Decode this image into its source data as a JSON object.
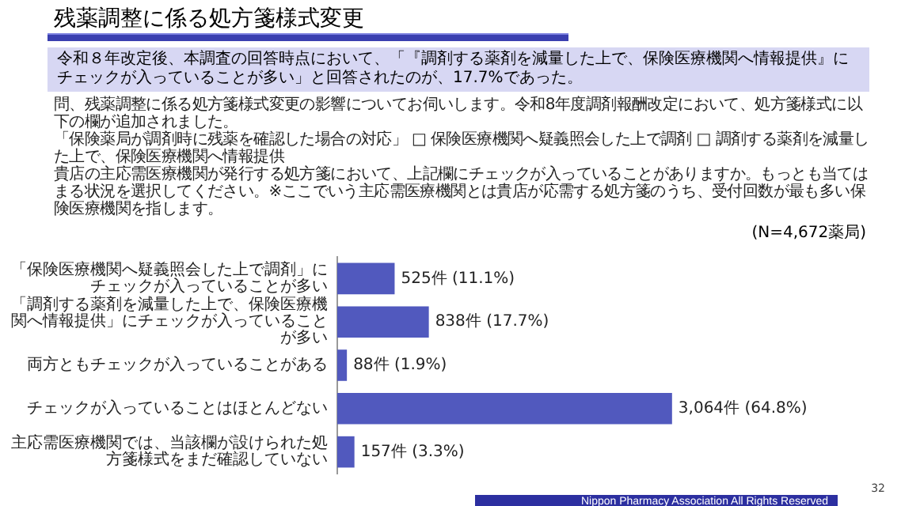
{
  "chart_data": {
    "type": "bar",
    "orientation": "horizontal",
    "title": "残薬調整に係る処方箋様式変更",
    "categories": [
      "「保険医療機関へ疑義照会した上で調剤」にチェックが入っていることが多い",
      "「調剤する薬剤を減量した上で、保険医療機関へ情報提供」にチェックが入っていることが多い",
      "両方ともチェックが入っていることがある",
      "チェックが入っていることはほとんどない",
      "主応需医療機関では、当該欄が設けられた処方箋様式をまだ確認していない"
    ],
    "values": [
      525,
      838,
      88,
      3064,
      157
    ],
    "value_labels": [
      "525件 (11.1%)",
      "838件 (17.7%)",
      "88件 (1.9%)",
      "3,064件 (64.8%)",
      "157件 (3.3%)"
    ],
    "color": "#5159be",
    "legend": false,
    "annotations": [
      "令和８年改定後、本調査の回答時点において、「『調剤する薬剤を減量した上で、保険医療機関へ情報提供』にチェックが入っていることが多い」と回答されたのが、17.7%であった。",
      "問、残薬調整に係る処方箋様式変更の影響についてお伺いします。令和8年度調剤報酬改定において、処方箋様式に以下の欄が追加されました。",
      "「保険薬局が調剤時に残薬を確認した場合の対応」 □ 保険医療機関へ疑義照会した上で調剤 □ 調剤する薬剤を減量した上で、保険医療機関へ情報提供",
      "貴店の主応需医療機関が発行する処方箋において、上記欄にチェックが入っていることがありますか。もっとも当てはまる状況を選択してください。※ここでいう主応需医療機関とは貴店が応需する処方箋のうち、受付回数が最も多い保険医療機関を指します。",
      "(N=4,672薬局)",
      "Nippon Pharmacy Association All Rights Reserved",
      "32"
    ]
  }
}
